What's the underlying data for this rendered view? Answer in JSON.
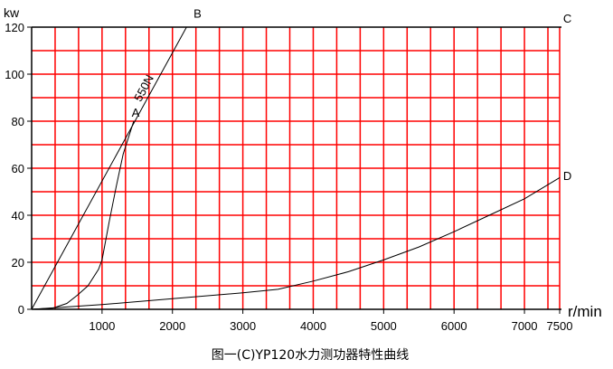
{
  "chart_data": {
    "type": "line",
    "title": "图一(C)YP120水力测功器特性曲线",
    "xlabel": "r/min",
    "ylabel": "kw",
    "xlim": [
      0,
      7500
    ],
    "ylim": [
      0,
      120
    ],
    "grid": true,
    "grid_color": "#ff0000",
    "x_ticks": [
      1000,
      2000,
      3000,
      4000,
      5000,
      6000,
      7000,
      7500
    ],
    "y_ticks": [
      0,
      20,
      40,
      60,
      80,
      100,
      120
    ],
    "annotations": [
      {
        "text": "A",
        "x": 1420,
        "y": 82
      },
      {
        "text": "B",
        "x": 2300,
        "y": 124
      },
      {
        "text": "C",
        "x": 7550,
        "y": 122
      },
      {
        "text": "D",
        "x": 7550,
        "y": 55
      },
      {
        "text": "550N",
        "x": 1550,
        "y": 88
      }
    ],
    "series": [
      {
        "id": "OB",
        "x": [
          0,
          2200
        ],
        "y": [
          0,
          120
        ]
      },
      {
        "id": "OA",
        "x": [
          0,
          300,
          500,
          650,
          800,
          950,
          1000,
          1100,
          1200,
          1300,
          1450
        ],
        "y": [
          0,
          0.5,
          2.5,
          6,
          10,
          17,
          21,
          37,
          52,
          66,
          80
        ]
      },
      {
        "id": "OD",
        "x": [
          0,
          500,
          1000,
          2000,
          3000,
          3500,
          4000,
          4500,
          5000,
          5500,
          6000,
          6500,
          7000,
          7500
        ],
        "y": [
          0,
          1,
          2,
          4.5,
          7,
          8.5,
          12,
          16,
          21,
          26.5,
          33,
          40,
          47,
          56
        ]
      },
      {
        "id": "C",
        "x": [
          0,
          7500
        ],
        "y": [
          120,
          120
        ]
      }
    ]
  }
}
